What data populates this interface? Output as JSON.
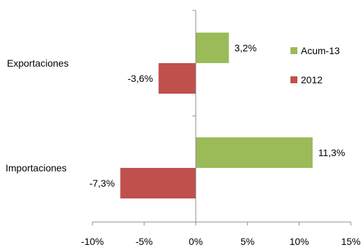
{
  "chart_data": {
    "type": "bar",
    "orientation": "horizontal",
    "categories": [
      "Exportaciones",
      "Importaciones"
    ],
    "series": [
      {
        "name": "Acum-13",
        "values": [
          3.2,
          11.3
        ],
        "labels": [
          "3,2%",
          "11,3%"
        ],
        "color": "#9BBB59"
      },
      {
        "name": "2012",
        "values": [
          -3.6,
          -7.3
        ],
        "labels": [
          "-3,6%",
          "-7,3%"
        ],
        "color": "#C0504D"
      }
    ],
    "xlim": [
      -10,
      15
    ],
    "xticks": [
      -10,
      -5,
      0,
      5,
      10,
      15
    ],
    "xtick_labels": [
      "-10%",
      "-5%",
      "0%",
      "5%",
      "10%",
      "15%"
    ],
    "grid": false,
    "legend_position": "right"
  }
}
